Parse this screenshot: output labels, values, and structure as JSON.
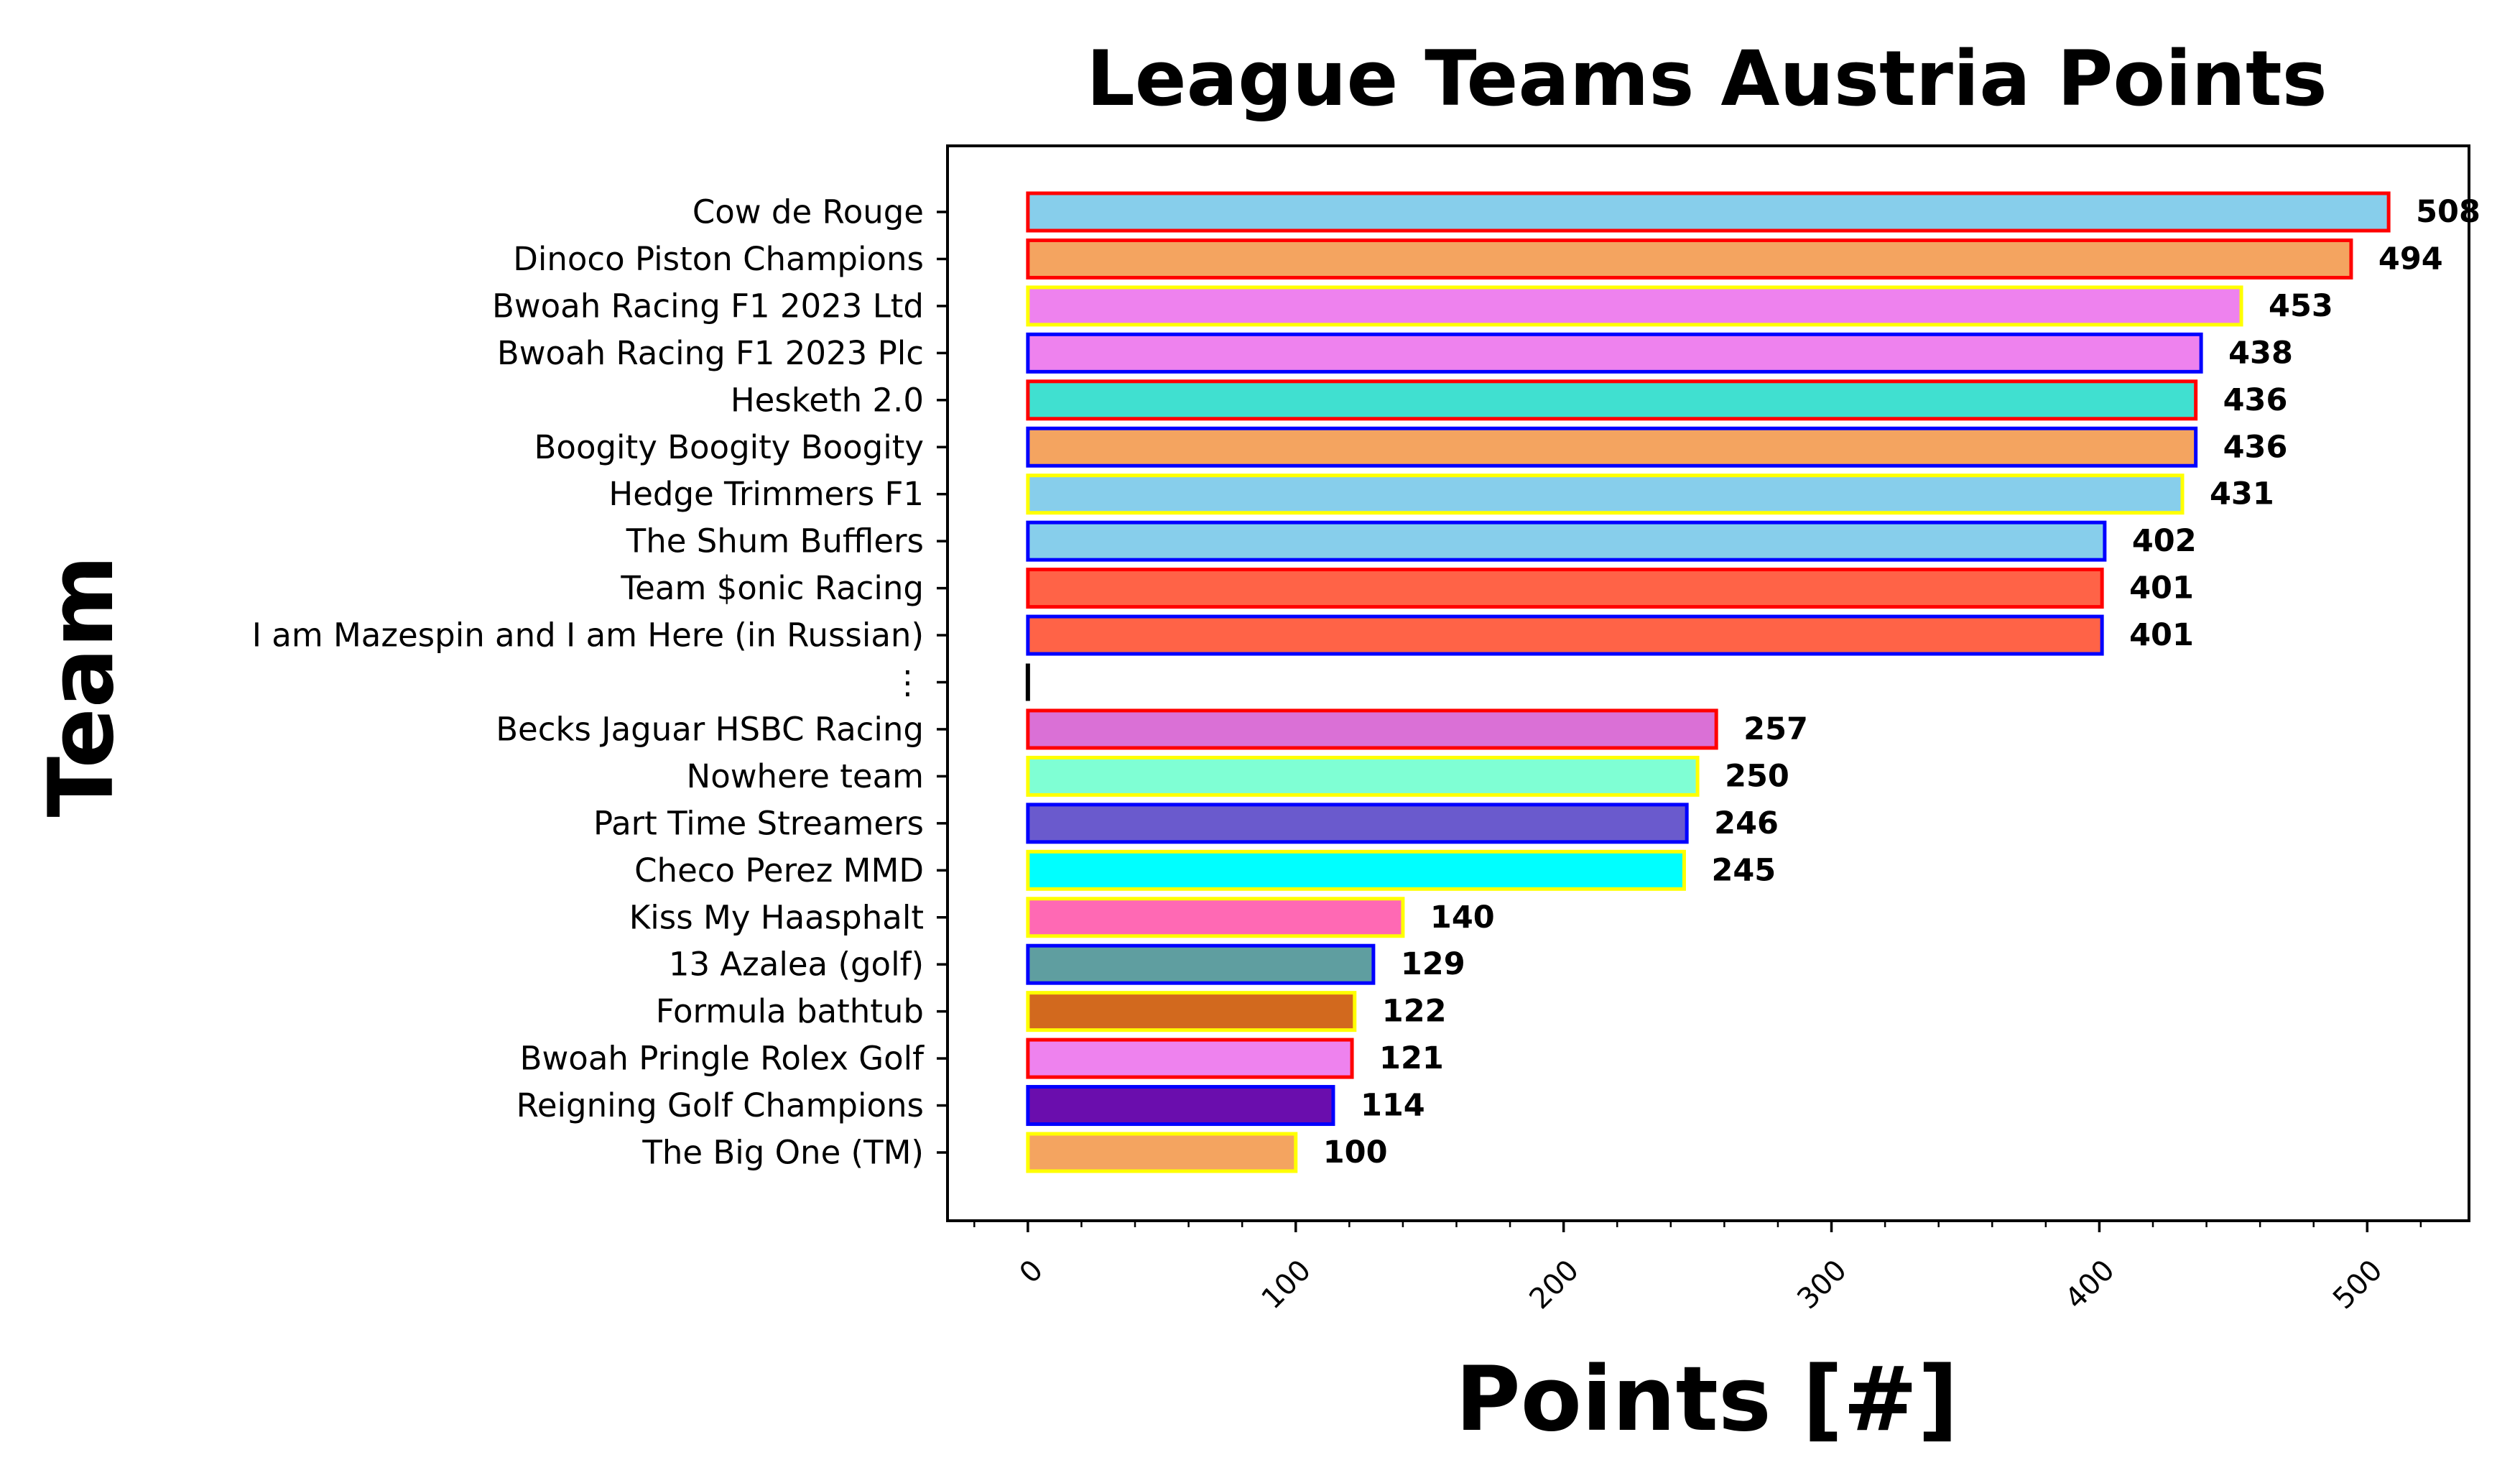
{
  "chart_data": {
    "type": "bar",
    "orientation": "horizontal",
    "title": "League Teams Austria Points",
    "xlabel": "Points [#]",
    "ylabel": "Team",
    "xlim": [
      -30,
      538
    ],
    "xticks": [
      "0",
      "100",
      "200",
      "300",
      "400",
      "500"
    ],
    "grid": false,
    "legend": "none",
    "categories": [
      "Cow de Rouge",
      "Dinoco Piston Champions",
      "Bwoah Racing F1 2023 Ltd",
      "Bwoah Racing F1 2023 Plc",
      "Hesketh 2.0",
      "Boogity Boogity Boogity",
      "Hedge Trimmers F1",
      "The Shum Bufflers",
      "Team $onic Racing",
      "I am Mazespin and I am Here (in Russian)",
      "⋮",
      "Becks Jaguar HSBC Racing",
      "Nowhere team",
      "Part Time Streamers",
      "Checo Perez MMD",
      "Kiss My Haasphalt",
      "13 Azalea (golf)",
      "Formula bathtub",
      "Bwoah Pringle Rolex Golf",
      "Reigning Golf Champions",
      "The Big One (TM)"
    ],
    "values": [
      508,
      494,
      453,
      438,
      436,
      436,
      431,
      402,
      401,
      401,
      0,
      257,
      250,
      246,
      245,
      140,
      129,
      122,
      121,
      114,
      100
    ],
    "value_labels": [
      "508",
      "494",
      "453",
      "438",
      "436",
      "436",
      "431",
      "402",
      "401",
      "401",
      "",
      "257",
      "250",
      "246",
      "245",
      "140",
      "129",
      "122",
      "121",
      "114",
      "100"
    ],
    "fill_colors": [
      "#87ceeb",
      "#f4a460",
      "#ee82ee",
      "#ee82ee",
      "#40e0d0",
      "#f4a460",
      "#87ceeb",
      "#87ceeb",
      "#ff6347",
      "#ff6347",
      "#000000",
      "#da70d6",
      "#7fffd4",
      "#6a5acd",
      "#00ffff",
      "#ff69b4",
      "#5f9ea0",
      "#d2691e",
      "#ee82ee",
      "#6a0dad",
      "#f4a460"
    ],
    "edge_colors": [
      "#ff0000",
      "#ff0000",
      "#ffff00",
      "#0000ff",
      "#ff0000",
      "#0000ff",
      "#ffff00",
      "#0000ff",
      "#ff0000",
      "#0000ff",
      "#000000",
      "#ff0000",
      "#ffff00",
      "#0000ff",
      "#ffff00",
      "#ffff00",
      "#0000ff",
      "#ffff00",
      "#ff0000",
      "#0000ff",
      "#ffff00"
    ]
  }
}
